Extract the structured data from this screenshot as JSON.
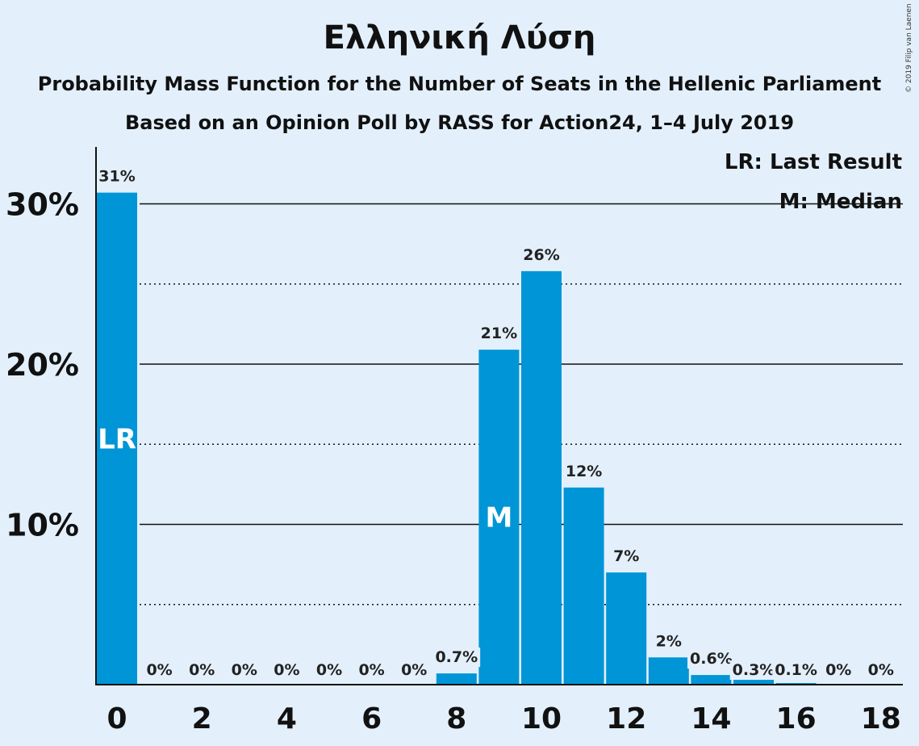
{
  "title": "Ελληνική Λύση",
  "subtitle1": "Probability Mass Function for the Number of Seats in the Hellenic Parliament",
  "subtitle2": "Based on an Opinion Poll by RASS for Action24, 1–4 July 2019",
  "copyright": "© 2019 Filip van Laenen",
  "legend": {
    "lr": "LR: Last Result",
    "m": "M: Median"
  },
  "chart_data": {
    "type": "bar",
    "title": "Ελληνική Λύση",
    "subtitle": "Probability Mass Function for the Number of Seats in the Hellenic Parliament — Based on an Opinion Poll by RASS for Action24, 1–4 July 2019",
    "xlabel": "",
    "ylabel": "",
    "categories": [
      0,
      1,
      2,
      3,
      4,
      5,
      6,
      7,
      8,
      9,
      10,
      11,
      12,
      13,
      14,
      15,
      16,
      17,
      18
    ],
    "values": [
      30.7,
      0,
      0,
      0,
      0,
      0,
      0,
      0,
      0.7,
      20.9,
      25.8,
      12.3,
      7.0,
      1.7,
      0.6,
      0.3,
      0.1,
      0,
      0
    ],
    "data_labels": [
      "31%",
      "0%",
      "0%",
      "0%",
      "0%",
      "0%",
      "0%",
      "0%",
      "0.7%",
      "21%",
      "26%",
      "12%",
      "7%",
      "2%",
      "0.6%",
      "0.3%",
      "0.1%",
      "0%",
      "0%"
    ],
    "x_ticks": [
      0,
      2,
      4,
      6,
      8,
      10,
      12,
      14,
      16,
      18
    ],
    "y_ticks": [
      10,
      20,
      30
    ],
    "y_tick_labels": [
      "10%",
      "20%",
      "30%"
    ],
    "y_minor_ticks": [
      5,
      15,
      25
    ],
    "ylim": [
      0,
      33.5
    ],
    "grid": true,
    "legend_position": "top-right",
    "markers": [
      {
        "label": "LR",
        "seat": 0
      },
      {
        "label": "M",
        "seat": 9
      }
    ],
    "bar_color": "#0095d6"
  }
}
